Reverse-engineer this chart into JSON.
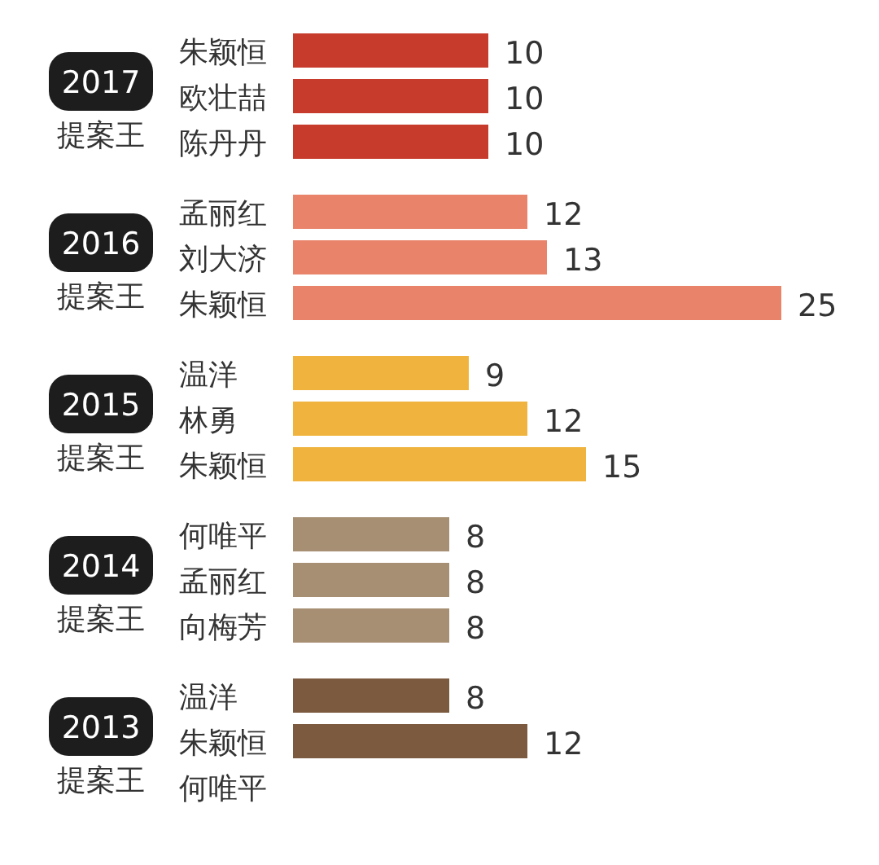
{
  "chart_data": [
    {
      "type": "bar",
      "orientation": "horizontal",
      "title": "2017",
      "subtitle": "提案王",
      "categories": [
        "朱颖恒",
        "欧壮喆",
        "陈丹丹"
      ],
      "values": [
        10,
        10,
        10
      ],
      "color": "#c63b2b",
      "data_labels": true
    },
    {
      "type": "bar",
      "orientation": "horizontal",
      "title": "2016",
      "subtitle": "提案王",
      "categories": [
        "孟丽红",
        "刘大济",
        "朱颖恒"
      ],
      "values": [
        12,
        13,
        25
      ],
      "color": "#e9846b",
      "data_labels": true
    },
    {
      "type": "bar",
      "orientation": "horizontal",
      "title": "2015",
      "subtitle": "提案王",
      "categories": [
        "温洋",
        "林勇",
        "朱颖恒"
      ],
      "values": [
        9,
        12,
        15
      ],
      "color": "#f0b43e",
      "data_labels": true
    },
    {
      "type": "bar",
      "orientation": "horizontal",
      "title": "2014",
      "subtitle": "提案王",
      "categories": [
        "何唯平",
        "孟丽红",
        "向梅芳"
      ],
      "values": [
        8,
        8,
        8
      ],
      "color": "#a78f73",
      "data_labels": true
    },
    {
      "type": "bar",
      "orientation": "horizontal",
      "title": "2013",
      "subtitle": "提案王",
      "categories": [
        "温洋",
        "朱颖恒",
        "何唯平"
      ],
      "values": [
        8,
        12,
        null
      ],
      "color": "#7b5a3f",
      "data_labels": true
    }
  ]
}
